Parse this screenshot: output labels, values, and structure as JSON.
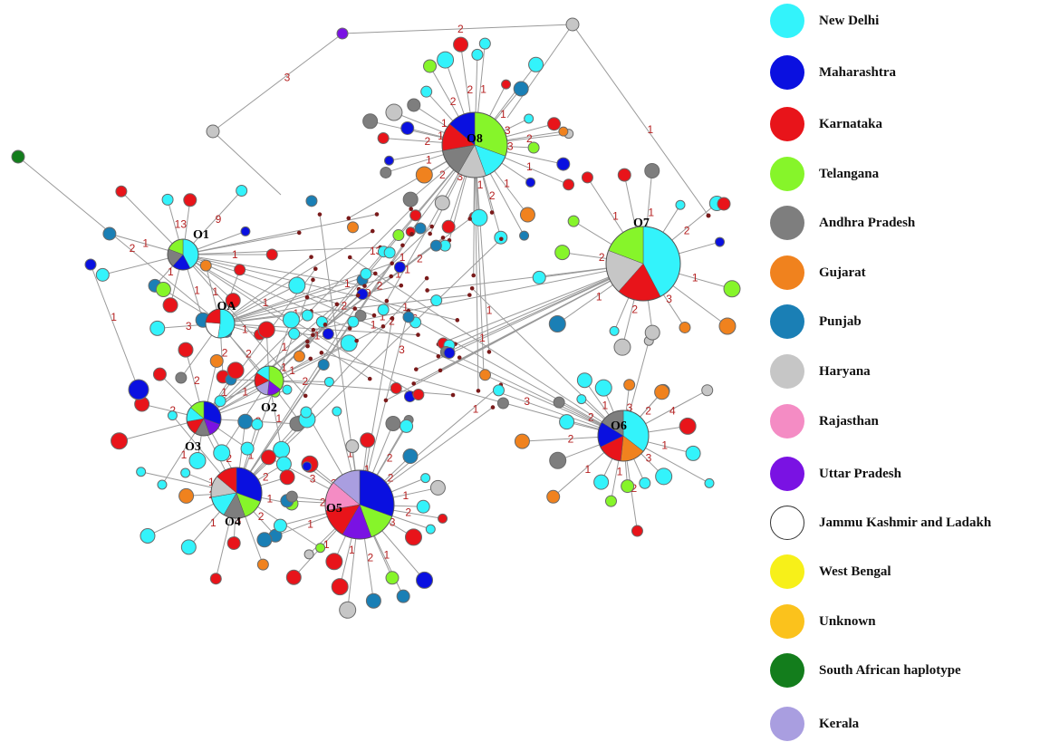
{
  "legend": [
    {
      "label": "New Delhi",
      "color": "#33f3fb"
    },
    {
      "label": "Maharashtra",
      "color": "#0a10e0"
    },
    {
      "label": "Karnataka",
      "color": "#e8141a"
    },
    {
      "label": "Telangana",
      "color": "#86f52a"
    },
    {
      "label": "Andhra Pradesh",
      "color": "#7e7e7e"
    },
    {
      "label": "Gujarat",
      "color": "#f0821e"
    },
    {
      "label": "Punjab",
      "color": "#1a7fb5"
    },
    {
      "label": "Haryana",
      "color": "#c6c6c6"
    },
    {
      "label": "Rajasthan",
      "color": "#f48cc4"
    },
    {
      "label": "Uttar Pradesh",
      "color": "#7a12e3"
    },
    {
      "label": "Jammu Kashmir and Ladakh",
      "color": "#ffffff"
    },
    {
      "label": "West Bengal",
      "color": "#f7f019"
    },
    {
      "label": "Unknown",
      "color": "#fbc21c"
    },
    {
      "label": "South African haplotype",
      "color": "#137d1c"
    },
    {
      "label": "Kerala",
      "color": "#a99ee0"
    }
  ],
  "hubs": [
    {
      "label": "O1",
      "slices": [
        "New Delhi",
        "Maharashtra",
        "Andhra Pradesh",
        "Telangana"
      ]
    },
    {
      "label": "OA",
      "slices": [
        "New Delhi",
        "Jammu Kashmir and Ladakh",
        "Karnataka"
      ]
    },
    {
      "label": "O2",
      "slices": [
        "Telangana",
        "Uttar Pradesh",
        "Kerala",
        "Karnataka",
        "New Delhi"
      ]
    },
    {
      "label": "O3",
      "slices": [
        "Maharashtra",
        "Uttar Pradesh",
        "Andhra Pradesh",
        "Karnataka",
        "New Delhi",
        "Telangana"
      ]
    },
    {
      "label": "O4",
      "slices": [
        "Maharashtra",
        "Telangana",
        "Andhra Pradesh",
        "New Delhi",
        "Haryana",
        "Karnataka"
      ]
    },
    {
      "label": "O5",
      "slices": [
        "Maharashtra",
        "Telangana",
        "Uttar Pradesh",
        "Karnataka",
        "Rajasthan",
        "Kerala"
      ]
    },
    {
      "label": "O6",
      "slices": [
        "New Delhi",
        "Gujarat",
        "Karnataka",
        "Maharashtra",
        "Andhra Pradesh"
      ]
    },
    {
      "label": "O7",
      "slices": [
        "New Delhi",
        "Karnataka",
        "Haryana",
        "Telangana"
      ]
    },
    {
      "label": "O8",
      "slices": [
        "Telangana",
        "New Delhi",
        "Haryana",
        "Andhra Pradesh",
        "Karnataka",
        "Maharashtra"
      ]
    }
  ],
  "edge_labels": [
    "1",
    "1",
    "1",
    "1",
    "13",
    "9",
    "1",
    "2",
    "3",
    "1",
    "1",
    "2",
    "1",
    "1",
    "2",
    "1",
    "3",
    "2",
    "1",
    "2",
    "2",
    "1",
    "1",
    "2",
    "3",
    "1",
    "2",
    "1",
    "1",
    "1",
    "2",
    "2",
    "3",
    "1",
    "2",
    "1",
    "1",
    "1",
    "2",
    "3",
    "2",
    "1",
    "1",
    "2",
    "2",
    "1",
    "1",
    "3",
    "2",
    "1",
    "1",
    "2",
    "2",
    "1",
    "3",
    "2",
    "4",
    "1",
    "3",
    "2",
    "1",
    "2",
    "1",
    "1",
    "2",
    "3",
    "1",
    "1",
    "2",
    "1",
    "3",
    "2",
    "1",
    "2",
    "1",
    "1",
    "2",
    "2",
    "1",
    "1",
    "3",
    "2",
    "6",
    "1",
    "2",
    "1",
    "1",
    "2",
    "3",
    "1",
    "1",
    "2"
  ]
}
